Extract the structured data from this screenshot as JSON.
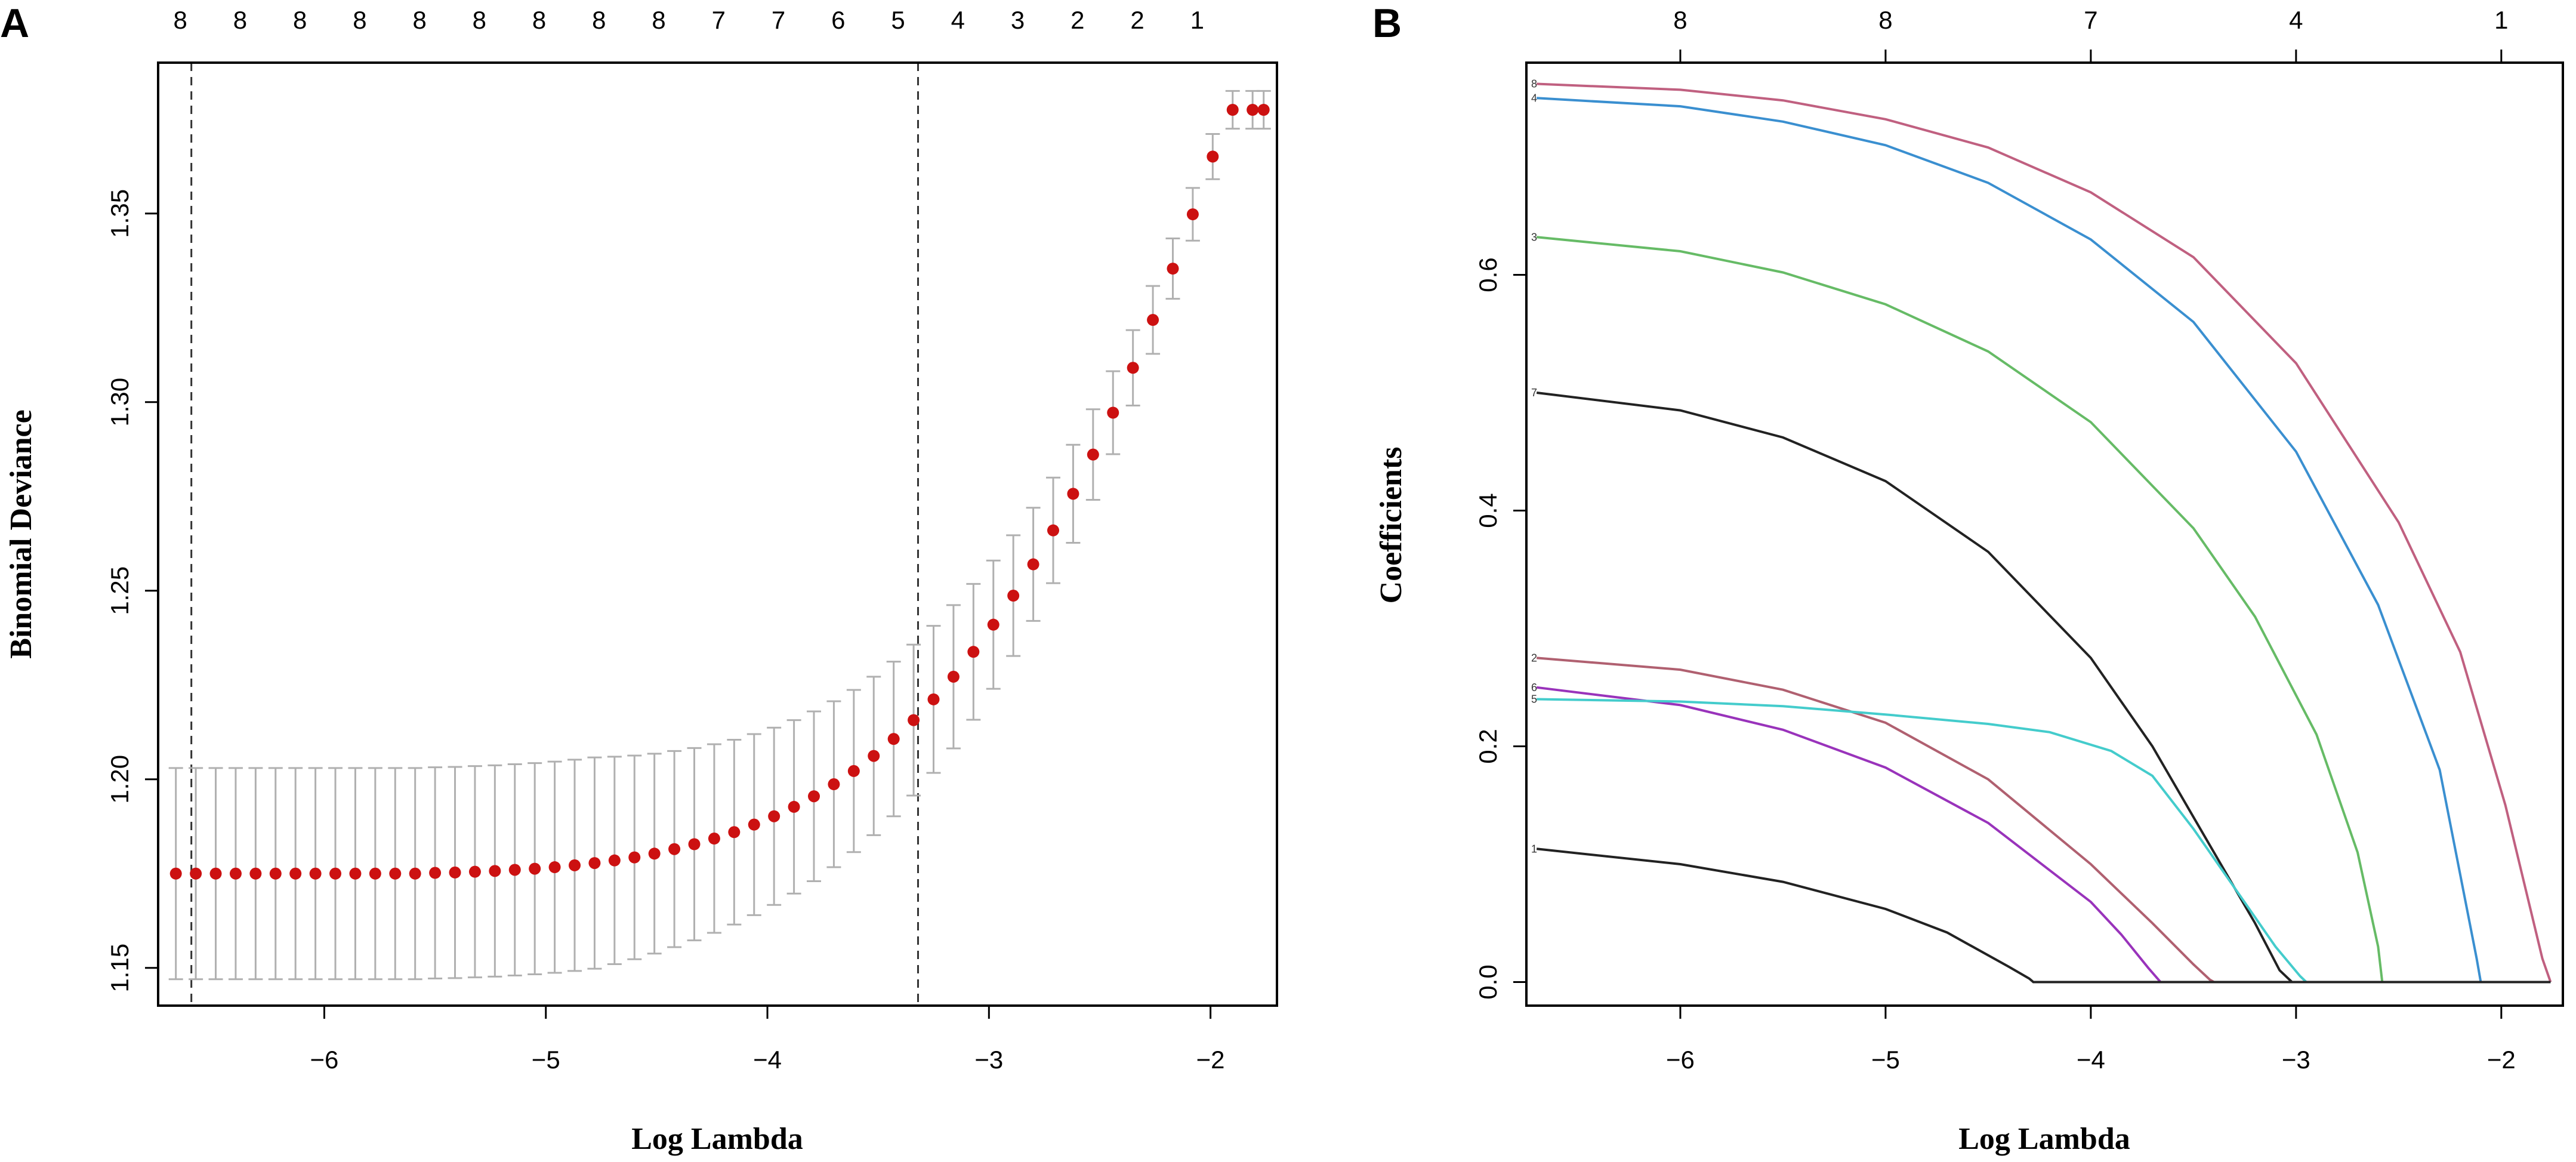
{
  "chart_data": [
    {
      "panel": "A",
      "type": "scatter",
      "xlabel": "Log Lambda",
      "ylabel": "Binomial Deviance",
      "xlim": [
        -6.75,
        -1.7
      ],
      "ylim": [
        1.14,
        1.39
      ],
      "xticks": [
        -6,
        -5,
        -4,
        -3,
        -2
      ],
      "yticks": [
        1.15,
        1.2,
        1.25,
        1.3,
        1.35
      ],
      "top_axis": {
        "x": [
          -6.65,
          -6.38,
          -6.11,
          -5.84,
          -5.57,
          -5.3,
          -5.03,
          -4.76,
          -4.49,
          -4.22,
          -3.95,
          -3.68,
          -3.41,
          -3.14,
          -2.87,
          -2.6,
          -2.33,
          -2.06
        ],
        "labels": [
          "8",
          "8",
          "8",
          "8",
          "8",
          "8",
          "8",
          "8",
          "8",
          "7",
          "7",
          "6",
          "5",
          "4",
          "3",
          "2",
          "2",
          "1"
        ]
      },
      "vlines": [
        -6.6,
        -3.32
      ],
      "color_points": "#cc1111",
      "color_errorbars": "#b0b0b0",
      "series": [
        {
          "name": "Binomial Deviance (mean ± SE)",
          "x": [
            -6.67,
            -6.58,
            -6.49,
            -6.4,
            -6.31,
            -6.22,
            -6.13,
            -6.04,
            -5.95,
            -5.86,
            -5.77,
            -5.68,
            -5.59,
            -5.5,
            -5.41,
            -5.32,
            -5.23,
            -5.14,
            -5.05,
            -4.96,
            -4.87,
            -4.78,
            -4.69,
            -4.6,
            -4.51,
            -4.42,
            -4.33,
            -4.24,
            -4.15,
            -4.06,
            -3.97,
            -3.88,
            -3.79,
            -3.7,
            -3.61,
            -3.52,
            -3.43,
            -3.34,
            -3.25,
            -3.16,
            -3.07,
            -2.98,
            -2.89,
            -2.8,
            -2.71,
            -2.62,
            -2.53,
            -2.44,
            -2.35,
            -2.26,
            -2.17,
            -2.08,
            -1.99,
            -1.9,
            -1.81,
            -1.76
          ],
          "y": [
            1.175,
            1.175,
            1.175,
            1.175,
            1.175,
            1.175,
            1.175,
            1.175,
            1.175,
            1.175,
            1.175,
            1.175,
            1.175,
            1.1752,
            1.1753,
            1.1755,
            1.1757,
            1.176,
            1.1763,
            1.1767,
            1.1772,
            1.1778,
            1.1785,
            1.1793,
            1.1803,
            1.1815,
            1.1828,
            1.1843,
            1.186,
            1.188,
            1.1902,
            1.1927,
            1.1955,
            1.1987,
            1.2022,
            1.2062,
            1.2107,
            1.2157,
            1.2212,
            1.2272,
            1.2338,
            1.241,
            1.2487,
            1.257,
            1.266,
            1.2757,
            1.2861,
            1.2972,
            1.3091,
            1.3218,
            1.3354,
            1.3498,
            1.3651,
            1.3775,
            1.3775,
            1.3775
          ],
          "se": [
            0.028,
            0.028,
            0.028,
            0.028,
            0.028,
            0.028,
            0.028,
            0.028,
            0.028,
            0.028,
            0.028,
            0.028,
            0.028,
            0.028,
            0.028,
            0.028,
            0.028,
            0.028,
            0.028,
            0.028,
            0.028,
            0.028,
            0.0275,
            0.027,
            0.0265,
            0.026,
            0.0255,
            0.025,
            0.0245,
            0.024,
            0.0235,
            0.023,
            0.0225,
            0.022,
            0.0215,
            0.021,
            0.0205,
            0.02,
            0.0195,
            0.019,
            0.018,
            0.017,
            0.016,
            0.015,
            0.014,
            0.013,
            0.012,
            0.011,
            0.01,
            0.009,
            0.008,
            0.007,
            0.006,
            0.005,
            0.005,
            0.005
          ]
        }
      ]
    },
    {
      "panel": "B",
      "type": "line",
      "xlabel": "Log Lambda",
      "ylabel": "Coefficients",
      "xlim": [
        -6.75,
        -1.7
      ],
      "ylim": [
        -0.02,
        0.78
      ],
      "xticks": [
        -6,
        -5,
        -4,
        -3,
        -2
      ],
      "yticks": [
        0.0,
        0.2,
        0.4,
        0.6
      ],
      "top_axis": {
        "x": [
          -6,
          -5,
          -4,
          -3,
          -2
        ],
        "labels": [
          "8",
          "8",
          "7",
          "4",
          "1"
        ]
      },
      "series": [
        {
          "name": "8",
          "color": "#c06080",
          "x": [
            -6.7,
            -6.0,
            -5.5,
            -5.0,
            -4.5,
            -4.0,
            -3.5,
            -3.0,
            -2.5,
            -2.2,
            -1.98,
            -1.8,
            -1.76
          ],
          "y": [
            0.762,
            0.757,
            0.748,
            0.732,
            0.708,
            0.67,
            0.615,
            0.525,
            0.39,
            0.28,
            0.15,
            0.02,
            0.0
          ]
        },
        {
          "name": "4",
          "color": "#3a8fd0",
          "x": [
            -6.7,
            -6.0,
            -5.5,
            -5.0,
            -4.5,
            -4.0,
            -3.5,
            -3.0,
            -2.6,
            -2.3,
            -2.12,
            -2.1,
            -1.76
          ],
          "y": [
            0.75,
            0.743,
            0.73,
            0.71,
            0.678,
            0.63,
            0.56,
            0.45,
            0.32,
            0.18,
            0.02,
            0.0,
            0.0
          ]
        },
        {
          "name": "3",
          "color": "#66bb66",
          "x": [
            -6.7,
            -6.0,
            -5.5,
            -5.0,
            -4.5,
            -4.0,
            -3.5,
            -3.2,
            -2.9,
            -2.7,
            -2.6,
            -2.58,
            -1.76
          ],
          "y": [
            0.632,
            0.62,
            0.602,
            0.575,
            0.535,
            0.475,
            0.385,
            0.31,
            0.21,
            0.11,
            0.03,
            0.0,
            0.0
          ]
        },
        {
          "name": "7",
          "color": "#222222",
          "x": [
            -6.7,
            -6.0,
            -5.5,
            -5.0,
            -4.5,
            -4.0,
            -3.7,
            -3.4,
            -3.2,
            -3.08,
            -3.02,
            -1.76
          ],
          "y": [
            0.5,
            0.485,
            0.462,
            0.425,
            0.365,
            0.275,
            0.2,
            0.11,
            0.05,
            0.01,
            0.0,
            0.0
          ]
        },
        {
          "name": "2",
          "color": "#b06070",
          "x": [
            -6.7,
            -6.0,
            -5.5,
            -5.0,
            -4.5,
            -4.0,
            -3.7,
            -3.5,
            -3.42,
            -3.4,
            -1.76
          ],
          "y": [
            0.275,
            0.265,
            0.248,
            0.22,
            0.172,
            0.1,
            0.05,
            0.015,
            0.002,
            0.0,
            0.0
          ]
        },
        {
          "name": "6",
          "color": "#9933bb",
          "x": [
            -6.7,
            -6.0,
            -5.5,
            -5.0,
            -4.5,
            -4.0,
            -3.85,
            -3.72,
            -3.66,
            -3.65,
            -1.76
          ],
          "y": [
            0.25,
            0.235,
            0.214,
            0.182,
            0.135,
            0.068,
            0.04,
            0.012,
            0.0,
            0.0,
            0.0
          ]
        },
        {
          "name": "5",
          "color": "#44cccc",
          "x": [
            -6.7,
            -6.0,
            -5.5,
            -5.0,
            -4.5,
            -4.2,
            -3.9,
            -3.7,
            -3.5,
            -3.3,
            -3.1,
            -2.98,
            -2.95,
            -1.76
          ],
          "y": [
            0.24,
            0.238,
            0.234,
            0.227,
            0.219,
            0.212,
            0.196,
            0.175,
            0.13,
            0.08,
            0.03,
            0.005,
            0.0,
            0.0
          ]
        },
        {
          "name": "1",
          "color": "#222222",
          "x": [
            -6.7,
            -6.0,
            -5.5,
            -5.0,
            -4.7,
            -4.4,
            -4.3,
            -4.28,
            -1.76
          ],
          "y": [
            0.113,
            0.1,
            0.085,
            0.062,
            0.042,
            0.013,
            0.003,
            0.0,
            0.0
          ]
        }
      ]
    }
  ],
  "panels": {
    "a": {
      "letter": "A",
      "xlabel": "Log Lambda",
      "ylabel": "Binomial Deviance"
    },
    "b": {
      "letter": "B",
      "xlabel": "Log Lambda",
      "ylabel": "Coefficients"
    }
  }
}
